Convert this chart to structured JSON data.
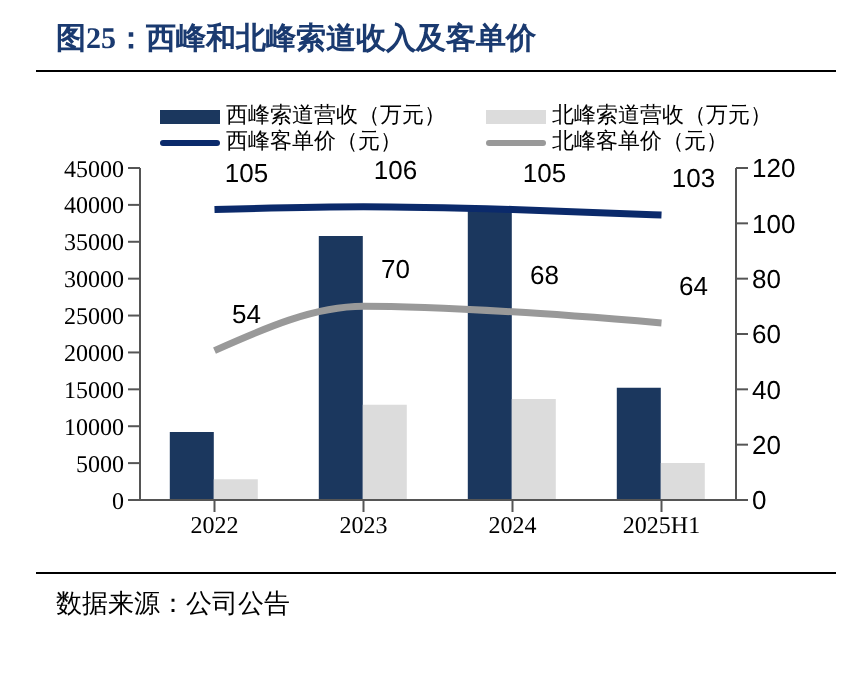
{
  "chart_data": {
    "type": "bar",
    "title": "图25：西峰和北峰索道收入及客单价",
    "annotations": [
      "数据来源：公司公告"
    ],
    "categories": [
      "2022",
      "2023",
      "2024",
      "2025H1"
    ],
    "series": [
      {
        "name": "西峰索道营收（万元）",
        "color": "#1b375e",
        "values": [
          9200,
          35800,
          39800,
          15200
        ]
      },
      {
        "name": "北峰索道营收（万元）",
        "color": "#dcdcdc",
        "values": [
          2800,
          12900,
          13700,
          5000
        ]
      },
      {
        "name": "西峰客单价（元）",
        "type": "line",
        "axis": "y2",
        "color": "#0b2a6b",
        "values": [
          105,
          106,
          105,
          103
        ],
        "value_labels": [
          "105",
          "106",
          "105",
          "103"
        ]
      },
      {
        "name": "北峰客单价（元）",
        "type": "line",
        "axis": "y2",
        "color": "#999999",
        "values": [
          54,
          70,
          68,
          64
        ],
        "value_labels": [
          "54",
          "70",
          "68",
          "64"
        ]
      }
    ],
    "ylim": [
      0,
      45000
    ],
    "yticks": [
      0,
      5000,
      10000,
      15000,
      20000,
      25000,
      30000,
      35000,
      40000,
      45000
    ],
    "y2lim": [
      0,
      120
    ],
    "y2ticks": [
      0,
      20,
      40,
      60,
      80,
      100,
      120
    ],
    "grid": false,
    "legend": "top",
    "marker": "none",
    "line_style": "solid"
  }
}
